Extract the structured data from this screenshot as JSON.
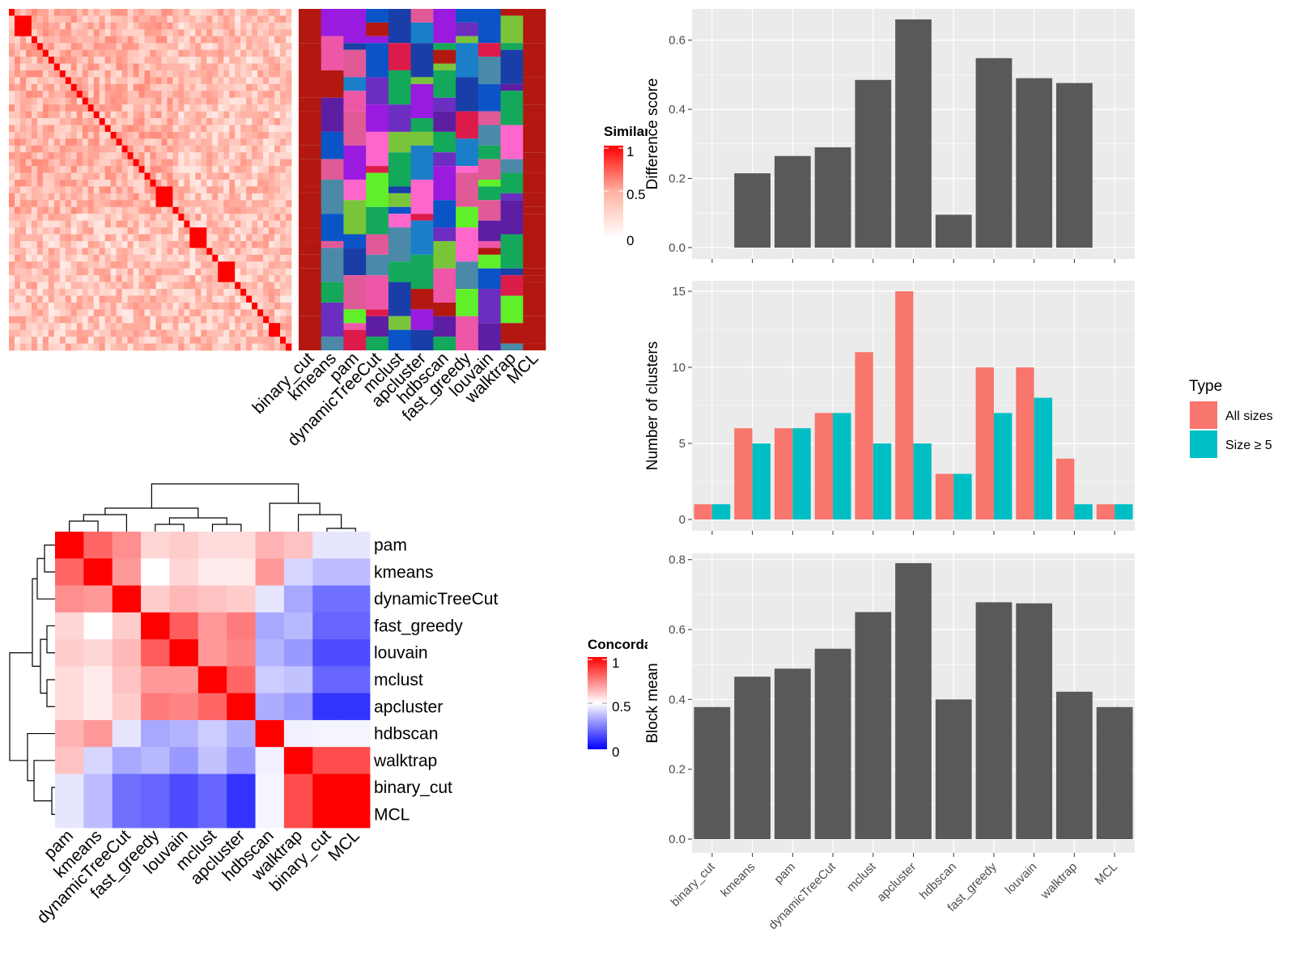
{
  "colors": {
    "bar_dark": "#595959",
    "panel_bg": "#ebebeb",
    "grid": "#ffffff",
    "all_sizes": "#F8766D",
    "size_ge5": "#00BFC4",
    "red": "#ff0000",
    "dark_red": "#b2180f",
    "blue": "#0000ff"
  },
  "similarity_legend": {
    "title": "Similarity",
    "ticks": [
      "1",
      "0.5",
      "0"
    ]
  },
  "concordance_legend": {
    "title": "Concordance",
    "ticks": [
      "1",
      "0.5",
      "0"
    ]
  },
  "top_heatmap_methods": [
    "binary_cut",
    "kmeans",
    "pam",
    "dynamicTreeCut",
    "mclust",
    "apcluster",
    "hdbscan",
    "fast_greedy",
    "louvain",
    "walktrap",
    "MCL"
  ],
  "concordance": {
    "rows": [
      "pam",
      "kmeans",
      "dynamicTreeCut",
      "fast_greedy",
      "louvain",
      "mclust",
      "apcluster",
      "hdbscan",
      "walktrap",
      "binary_cut",
      "MCL"
    ],
    "matrix": [
      [
        1.0,
        0.8,
        0.72,
        0.58,
        0.6,
        0.57,
        0.57,
        0.65,
        0.62,
        0.45,
        0.45
      ],
      [
        0.8,
        1.0,
        0.7,
        0.5,
        0.58,
        0.54,
        0.54,
        0.7,
        0.42,
        0.37,
        0.37
      ],
      [
        0.72,
        0.7,
        1.0,
        0.6,
        0.64,
        0.62,
        0.6,
        0.45,
        0.33,
        0.22,
        0.22
      ],
      [
        0.58,
        0.5,
        0.6,
        1.0,
        0.82,
        0.7,
        0.76,
        0.33,
        0.36,
        0.2,
        0.2
      ],
      [
        0.6,
        0.58,
        0.64,
        0.82,
        1.0,
        0.7,
        0.74,
        0.35,
        0.3,
        0.15,
        0.15
      ],
      [
        0.57,
        0.54,
        0.62,
        0.7,
        0.7,
        1.0,
        0.8,
        0.4,
        0.38,
        0.2,
        0.2
      ],
      [
        0.57,
        0.54,
        0.6,
        0.76,
        0.74,
        0.8,
        1.0,
        0.34,
        0.3,
        0.1,
        0.1
      ],
      [
        0.65,
        0.7,
        0.45,
        0.33,
        0.35,
        0.4,
        0.34,
        1.0,
        0.47,
        0.48,
        0.48
      ],
      [
        0.62,
        0.42,
        0.33,
        0.36,
        0.3,
        0.38,
        0.3,
        0.47,
        1.0,
        0.85,
        0.85
      ],
      [
        0.45,
        0.37,
        0.22,
        0.2,
        0.15,
        0.2,
        0.1,
        0.48,
        0.85,
        1.0,
        1.0
      ],
      [
        0.45,
        0.37,
        0.22,
        0.2,
        0.15,
        0.2,
        0.1,
        0.48,
        0.85,
        1.0,
        1.0
      ]
    ]
  },
  "chart_data": [
    {
      "type": "bar",
      "title": "",
      "xlabel": "",
      "ylabel": "Difference score",
      "categories": [
        "binary_cut",
        "kmeans",
        "pam",
        "dynamicTreeCut",
        "mclust",
        "apcluster",
        "hdbscan",
        "fast_greedy",
        "louvain",
        "walktrap",
        "MCL"
      ],
      "values": [
        0.0,
        0.215,
        0.265,
        0.29,
        0.485,
        0.66,
        0.095,
        0.548,
        0.49,
        0.476,
        0.0
      ],
      "ylim": [
        0,
        0.66
      ],
      "yticks": [
        "0.0",
        "0.2",
        "0.4",
        "0.6"
      ],
      "grid": true
    },
    {
      "type": "bar",
      "title": "",
      "xlabel": "",
      "ylabel": "Number of clusters",
      "categories": [
        "binary_cut",
        "kmeans",
        "pam",
        "dynamicTreeCut",
        "mclust",
        "apcluster",
        "hdbscan",
        "fast_greedy",
        "louvain",
        "walktrap",
        "MCL"
      ],
      "series": [
        {
          "name": "All sizes",
          "values": [
            1,
            6,
            6,
            7,
            11,
            15,
            3,
            10,
            10,
            4,
            1
          ]
        },
        {
          "name": "Size ≥ 5",
          "values": [
            1,
            5,
            6,
            7,
            5,
            5,
            3,
            7,
            8,
            1,
            1
          ]
        }
      ],
      "ylim": [
        0,
        15
      ],
      "yticks": [
        "0",
        "5",
        "10",
        "15"
      ],
      "legend_title": "Type",
      "legend_position": "right",
      "grid": true
    },
    {
      "type": "bar",
      "title": "",
      "xlabel": "",
      "ylabel": "Block mean",
      "categories": [
        "binary_cut",
        "kmeans",
        "pam",
        "dynamicTreeCut",
        "mclust",
        "apcluster",
        "hdbscan",
        "fast_greedy",
        "louvain",
        "walktrap",
        "MCL"
      ],
      "values": [
        0.378,
        0.465,
        0.488,
        0.545,
        0.65,
        0.79,
        0.4,
        0.678,
        0.675,
        0.422,
        0.378
      ],
      "ylim": [
        0,
        0.79
      ],
      "yticks": [
        "0.0",
        "0.2",
        "0.4",
        "0.6",
        "0.8"
      ],
      "grid": true
    }
  ]
}
